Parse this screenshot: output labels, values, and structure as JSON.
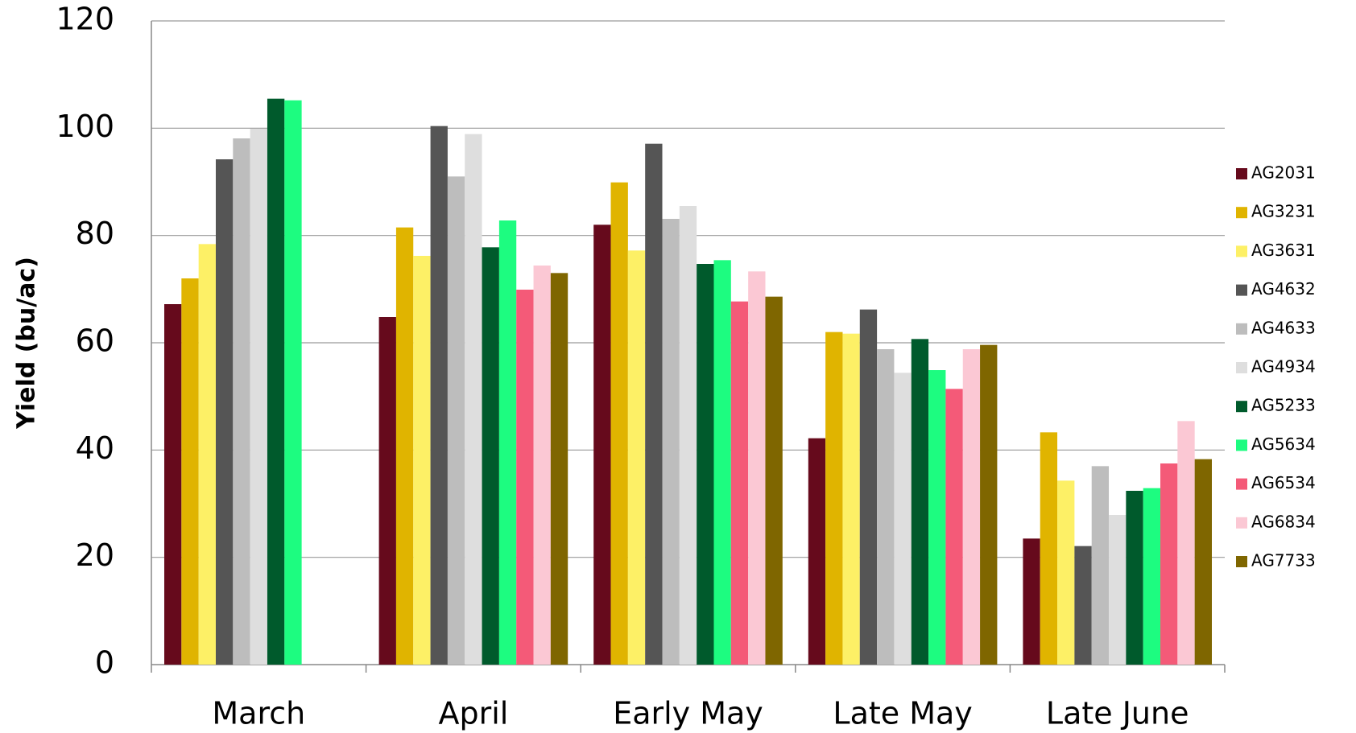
{
  "chart_data": {
    "type": "bar",
    "y_label": "Yield (bu/ac)",
    "categories": [
      "March",
      "April",
      "Early May",
      "Late May",
      "Late June"
    ],
    "series": [
      {
        "name": "AG2031",
        "color": "#660a1c",
        "values": [
          67.2,
          64.8,
          82,
          42.2,
          23.5
        ]
      },
      {
        "name": "AG3231",
        "color": "#e0b400",
        "values": [
          72,
          81.5,
          89.9,
          62,
          43.3
        ]
      },
      {
        "name": "AG3631",
        "color": "#fdf066",
        "values": [
          78.4,
          76.2,
          77.2,
          61.7,
          34.3
        ]
      },
      {
        "name": "AG4632",
        "color": "#555555",
        "values": [
          94.2,
          100.4,
          97.1,
          66.2,
          22.1
        ]
      },
      {
        "name": "AG4633",
        "color": "#bdbdbd",
        "values": [
          98.1,
          91,
          83.1,
          58.8,
          37
        ]
      },
      {
        "name": "AG4934",
        "color": "#dedede",
        "values": [
          99.9,
          98.9,
          85.5,
          54.4,
          27.9
        ]
      },
      {
        "name": "AG5233",
        "color": "#005a2c",
        "values": [
          105.5,
          77.8,
          74.7,
          60.7,
          32.4
        ]
      },
      {
        "name": "AG5634",
        "color": "#1dfc80",
        "values": [
          105.2,
          82.8,
          75.4,
          54.9,
          32.9
        ]
      },
      {
        "name": "AG6534",
        "color": "#f45a78",
        "values": [
          null,
          69.9,
          67.7,
          51.4,
          37.5
        ]
      },
      {
        "name": "AG6834",
        "color": "#fbc8d4",
        "values": [
          null,
          74.4,
          73.3,
          58.8,
          45.4
        ]
      },
      {
        "name": "AG7733",
        "color": "#7f6600",
        "values": [
          null,
          73,
          68.6,
          59.6,
          38.3
        ]
      }
    ],
    "ylim": [
      0,
      120
    ],
    "yticks": [
      0,
      20,
      40,
      60,
      80,
      100,
      120
    ],
    "grid": true,
    "legend": "right"
  }
}
